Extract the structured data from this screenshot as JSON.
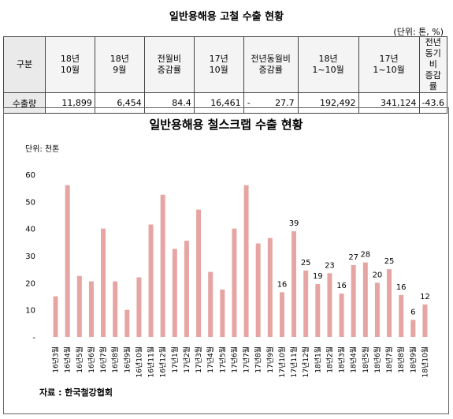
{
  "page_title": "일반용해용 고철 수출 현황",
  "unit_note": "(단위: 톤, %)",
  "table": {
    "headers": [
      [
        "구분"
      ],
      [
        "18년",
        "10월"
      ],
      [
        "18년",
        "9월"
      ],
      [
        "전월비",
        "증감률"
      ],
      [
        "17년",
        "10월"
      ],
      [
        "전년동월비",
        "증감률"
      ],
      [
        "18년",
        "1~10월"
      ],
      [
        "17년",
        "1~10월"
      ],
      [
        "전년동기비",
        "증감률"
      ]
    ],
    "row_label": "수출량",
    "values": [
      "11,899",
      "6,454",
      "84.4",
      "16,461",
      "-",
      "27.7",
      "192,492",
      "341,124",
      "-43.6"
    ]
  },
  "chart_data": {
    "type": "bar",
    "title": "일반용해용 철스크랩 수출 현황",
    "ylabel": "단위: 천톤",
    "ylim": [
      0,
      60
    ],
    "yticks": [
      "-",
      "10",
      "20",
      "30",
      "40",
      "50",
      "60"
    ],
    "categories": [
      "16년3월",
      "16년4월",
      "16년5월",
      "16년6월",
      "16년7월",
      "16년8월",
      "16년9월",
      "16년10월",
      "16년11월",
      "16년12월",
      "17년1월",
      "17년2월",
      "17년3월",
      "17년4월",
      "17년5월",
      "17년6월",
      "17년7월",
      "17년8월",
      "17년9월",
      "17년10월",
      "17년11월",
      "17년12월",
      "18년1월",
      "18년2월",
      "18년3월",
      "18년4월",
      "18년5월",
      "18년6월",
      "18년7월",
      "18년8월",
      "18년9월",
      "18년10월"
    ],
    "values": [
      15,
      56,
      22.5,
      20.5,
      40,
      20.5,
      10,
      22,
      41.5,
      52.5,
      32.5,
      35.5,
      47,
      24,
      17.5,
      40,
      56,
      34.5,
      36.5,
      16.5,
      39,
      24.5,
      19.5,
      23.5,
      16,
      26.5,
      27.5,
      20,
      25,
      15.5,
      6.3,
      12
    ],
    "data_labels": [
      "",
      "",
      "",
      "",
      "",
      "",
      "",
      "",
      "",
      "",
      "",
      "",
      "",
      "",
      "",
      "",
      "",
      "",
      "",
      "16",
      "39",
      "25",
      "19",
      "23",
      "16",
      "27",
      "28",
      "20",
      "25",
      "16",
      "6",
      "12"
    ],
    "bar_color": "#e6a5a3",
    "grid": false
  },
  "source": "자료 : 한국철강협회"
}
